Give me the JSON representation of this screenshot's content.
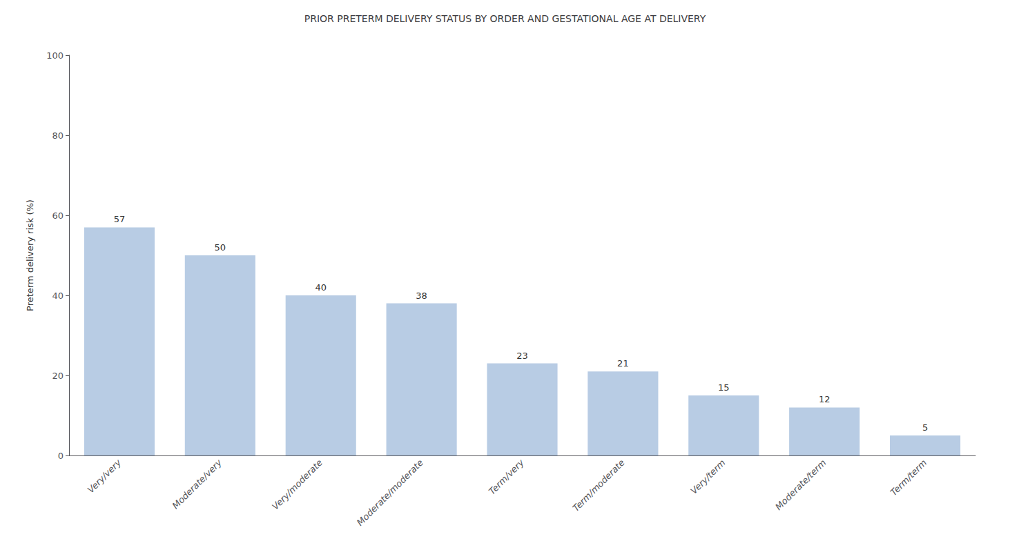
{
  "chart_data": {
    "type": "bar",
    "title": "PRIOR PRETERM DELIVERY STATUS BY ORDER AND GESTATIONAL AGE AT DELIVERY",
    "ylabel": "Preterm delivery risk (%)",
    "categories": [
      "Very/very",
      "Moderate/very",
      "Very/moderate",
      "Moderate/moderate",
      "Term/very",
      "Term/moderate",
      "Very/term",
      "Moderate/term",
      "Term/term"
    ],
    "values": [
      57,
      50,
      40,
      38,
      23,
      21,
      15,
      12,
      5
    ],
    "color": "#b8cce4",
    "ylim": [
      0,
      100
    ],
    "yticks": [
      0,
      20,
      40,
      60,
      80,
      100
    ],
    "grid": false,
    "data_labels": true
  }
}
